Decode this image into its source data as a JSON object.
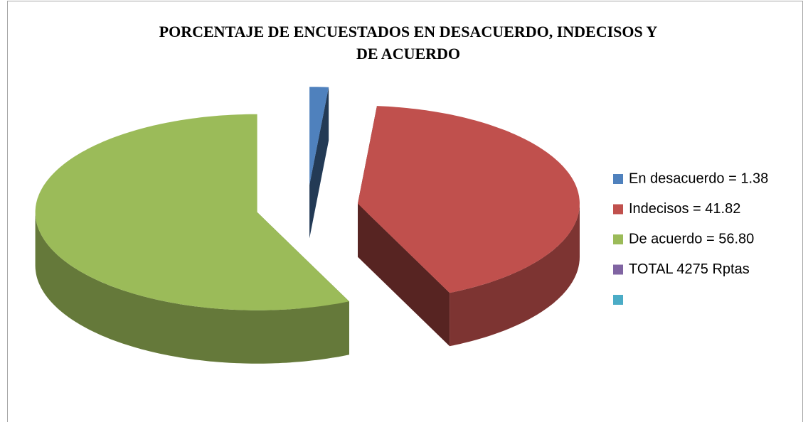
{
  "chart_data": {
    "type": "pie",
    "title": [
      "PORCENTAJE DE ENCUESTADOS EN DESACUERDO, INDECISOS Y",
      "DE ACUERDO"
    ],
    "categories": [
      "En desacuerdo = 1.38",
      "Indecisos = 41.82",
      "De acuerdo = 56.80",
      "TOTAL 4275 Rptas",
      null
    ],
    "values": [
      1.38,
      41.82,
      56.8,
      null,
      null
    ],
    "colors": [
      "#4f81bd",
      "#c0504d",
      "#9bbb59",
      "#8064a2",
      "#4bacc6"
    ],
    "legend": "right"
  }
}
